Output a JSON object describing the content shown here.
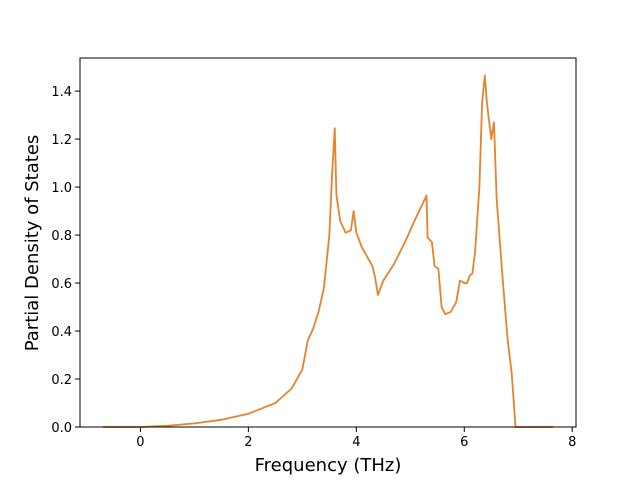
{
  "chart_data": {
    "type": "line",
    "x_label": "Frequency (THz)",
    "y_label": "Partial Density of States",
    "x": [
      -0.7,
      0,
      0.5,
      1,
      1.5,
      2,
      2.5,
      2.8,
      3.0,
      3.1,
      3.2,
      3.3,
      3.4,
      3.5,
      3.55,
      3.6,
      3.63,
      3.7,
      3.8,
      3.9,
      3.95,
      4.0,
      4.1,
      4.2,
      4.3,
      4.35,
      4.4,
      4.5,
      4.7,
      4.9,
      5.1,
      5.3,
      5.32,
      5.4,
      5.45,
      5.52,
      5.58,
      5.65,
      5.75,
      5.85,
      5.92,
      6.0,
      6.05,
      6.1,
      6.15,
      6.2,
      6.28,
      6.33,
      6.38,
      6.42,
      6.5,
      6.55,
      6.6,
      6.7,
      6.8,
      6.88,
      6.95,
      7.65
    ],
    "series": [
      {
        "color": "#e8822e",
        "values": [
          0,
          0,
          0.005,
          0.015,
          0.03,
          0.055,
          0.1,
          0.16,
          0.24,
          0.36,
          0.41,
          0.48,
          0.58,
          0.8,
          1.05,
          1.245,
          0.97,
          0.86,
          0.81,
          0.82,
          0.9,
          0.81,
          0.75,
          0.71,
          0.67,
          0.62,
          0.55,
          0.61,
          0.68,
          0.77,
          0.87,
          0.965,
          0.79,
          0.77,
          0.67,
          0.66,
          0.5,
          0.47,
          0.48,
          0.52,
          0.61,
          0.6,
          0.6,
          0.63,
          0.64,
          0.73,
          1.0,
          1.35,
          1.465,
          1.35,
          1.2,
          1.27,
          0.95,
          0.65,
          0.37,
          0.22,
          0,
          0
        ]
      }
    ],
    "xlim": [
      -1.12,
      8.07
    ],
    "ylim": [
      0,
      1.538
    ],
    "xticks": [
      0,
      2,
      4,
      6,
      8
    ],
    "yticks": [
      {
        "value": 0,
        "label": "0.0"
      },
      0.2,
      0.4,
      0.6,
      0.8,
      {
        "value": 1,
        "label": "1.0"
      },
      1.2,
      1.4
    ],
    "grid": false
  }
}
